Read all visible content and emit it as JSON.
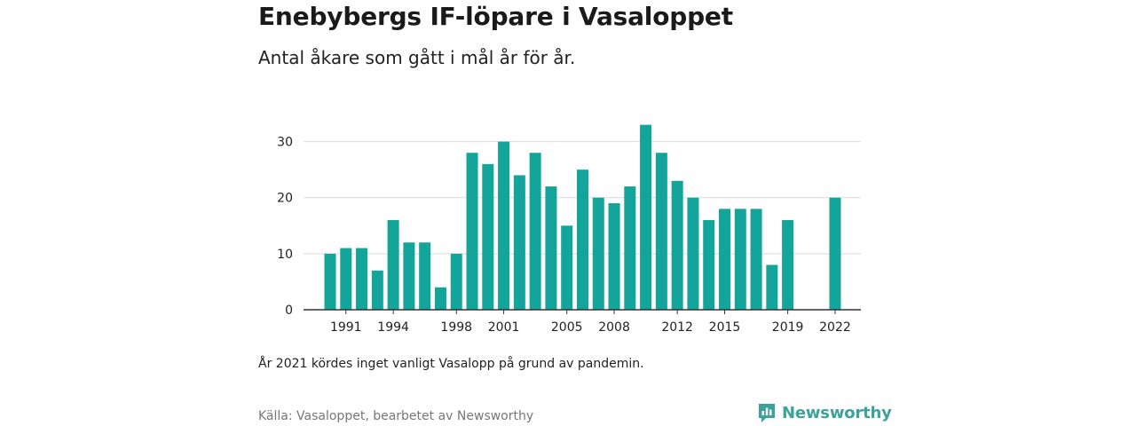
{
  "header": {
    "title": "Enebybergs IF-löpare i Vasaloppet",
    "subtitle": "Antal åkare som gått i mål år för år."
  },
  "footer": {
    "note": "År 2021 kördes inget vanligt Vasalopp på grund av pandemin.",
    "source": "Källa: Vasaloppet, bearbetet av Newsworthy",
    "brand": "Newsworthy",
    "brand_icon": "newsworthy-logo-icon"
  },
  "colors": {
    "bar": "#14a59a",
    "grid": "#d9d9d9",
    "axis": "#333333",
    "brand": "#3aa39a"
  },
  "chart_data": {
    "type": "bar",
    "title": "Enebybergs IF-löpare i Vasaloppet",
    "subtitle": "Antal åkare som gått i mål år för år.",
    "xlabel": "",
    "ylabel": "",
    "ylim": [
      0,
      35
    ],
    "yticks": [
      0,
      10,
      20,
      30
    ],
    "xtick_labels": [
      "1991",
      "1994",
      "1998",
      "2001",
      "2005",
      "2008",
      "2012",
      "2015",
      "2019",
      "2022"
    ],
    "grid": true,
    "categories": [
      "1990",
      "1991",
      "1992",
      "1993",
      "1994",
      "1995",
      "1996",
      "1997",
      "1998",
      "1999",
      "2000",
      "2001",
      "2002",
      "2003",
      "2004",
      "2005",
      "2006",
      "2007",
      "2008",
      "2009",
      "2010",
      "2011",
      "2012",
      "2013",
      "2014",
      "2015",
      "2016",
      "2017",
      "2018",
      "2019",
      "2020",
      "2021",
      "2022"
    ],
    "values": [
      10,
      11,
      11,
      7,
      16,
      12,
      12,
      4,
      10,
      28,
      26,
      30,
      24,
      28,
      22,
      15,
      25,
      20,
      19,
      22,
      33,
      28,
      23,
      20,
      16,
      18,
      18,
      18,
      8,
      16,
      null,
      null,
      20
    ]
  }
}
